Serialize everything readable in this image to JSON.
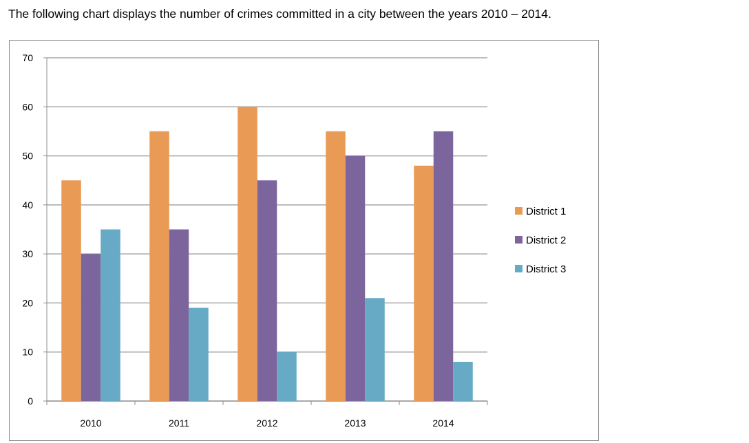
{
  "caption": "The following chart displays the number of crimes committed in a city between the years 2010 – 2014.",
  "chart_data": {
    "type": "bar",
    "title": "",
    "xlabel": "",
    "ylabel": "",
    "categories": [
      "2010",
      "2011",
      "2012",
      "2013",
      "2014"
    ],
    "series": [
      {
        "name": "District 1",
        "color": "#e99a55",
        "values": [
          45,
          55,
          60,
          55,
          48
        ]
      },
      {
        "name": "District 2",
        "color": "#7c659c",
        "values": [
          30,
          35,
          45,
          50,
          55
        ]
      },
      {
        "name": "District 3",
        "color": "#67aac6",
        "values": [
          35,
          19,
          10,
          21,
          8
        ]
      }
    ],
    "ylim": [
      0,
      70
    ],
    "yticks": [
      "0",
      "10",
      "20",
      "30",
      "40",
      "50",
      "60",
      "70"
    ],
    "grid": true,
    "legend": "right"
  }
}
